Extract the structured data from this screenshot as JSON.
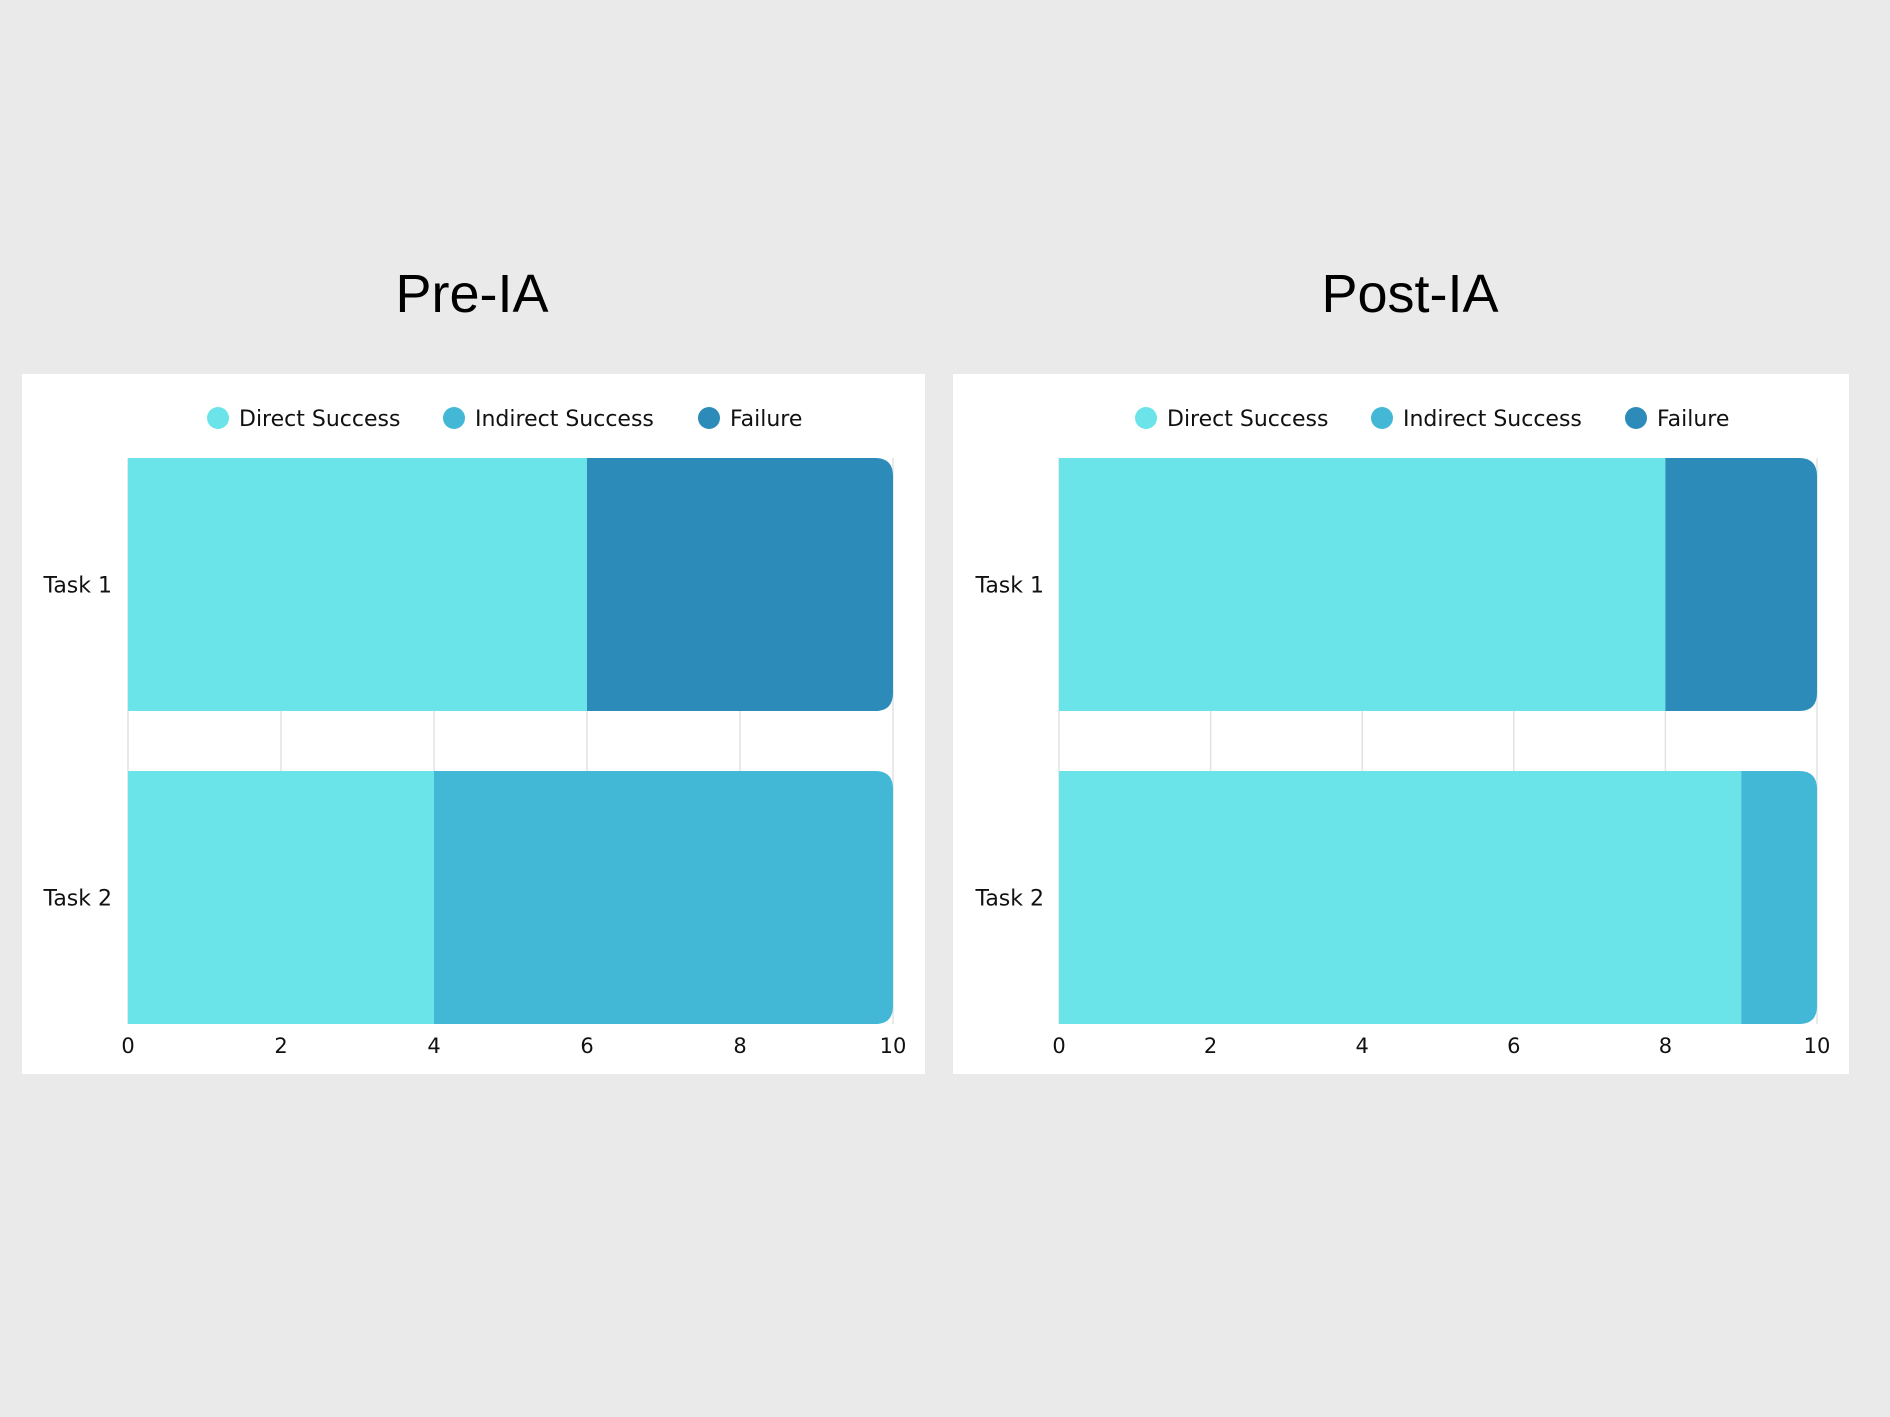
{
  "colors": {
    "background": "#eaeaea",
    "panel": "#ffffff",
    "gridline": "#e3e3e3"
  },
  "chart_data": [
    {
      "type": "bar",
      "orientation": "horizontal",
      "stacked": true,
      "title": "Pre-IA",
      "categories": [
        "Task 1",
        "Task 2"
      ],
      "series": [
        {
          "name": "Direct Success",
          "color": "#6ae4e8",
          "values": [
            6,
            4
          ]
        },
        {
          "name": "Indirect Success",
          "color": "#42b7d6",
          "values": [
            0,
            6
          ]
        },
        {
          "name": "Failure",
          "color": "#2d8bba",
          "values": [
            4,
            0
          ]
        }
      ],
      "xlim": [
        0,
        10
      ],
      "xticks": [
        "0",
        "2",
        "4",
        "6",
        "8",
        "10"
      ],
      "legend": "top",
      "grid": true
    },
    {
      "type": "bar",
      "orientation": "horizontal",
      "stacked": true,
      "title": "Post-IA",
      "categories": [
        "Task 1",
        "Task 2"
      ],
      "series": [
        {
          "name": "Direct Success",
          "color": "#6ae4e8",
          "values": [
            8,
            9
          ]
        },
        {
          "name": "Indirect Success",
          "color": "#42b7d6",
          "values": [
            0,
            1
          ]
        },
        {
          "name": "Failure",
          "color": "#2d8bba",
          "values": [
            2,
            0
          ]
        }
      ],
      "xlim": [
        0,
        10
      ],
      "xticks": [
        "0",
        "2",
        "4",
        "6",
        "8",
        "10"
      ],
      "legend": "top",
      "grid": true
    }
  ]
}
